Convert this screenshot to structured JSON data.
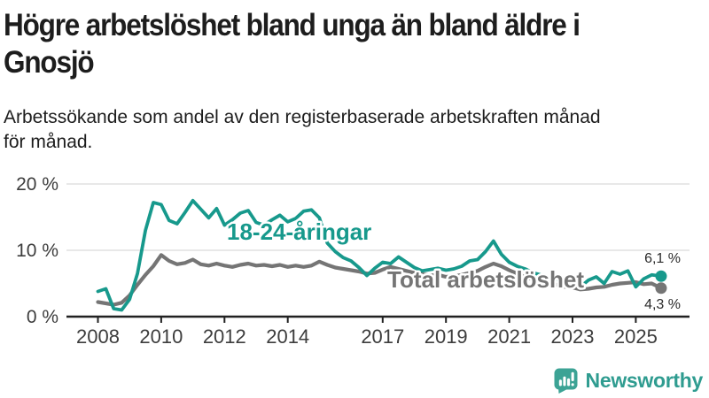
{
  "header": {
    "title_line1": "Högre arbetslöshet bland unga än bland äldre i",
    "title_line2": "Gnosjö",
    "subtitle_line1": "Arbetssökande som andel av den registerbaserade arbetskraften månad",
    "subtitle_line2": "för månad."
  },
  "footer": {
    "brand": "Newsworthy",
    "logo_icon": "newsworthy-speech-bubble-bar-chart-icon",
    "brand_color": "#2f9c90",
    "icon_color": "#3ca395"
  },
  "colors": {
    "background": "#ffffff",
    "title_text": "#1d1d1d",
    "axis_text": "#3d3d3d",
    "axis_line": "#212121",
    "gridline": "#d9d9d9",
    "youth_teal": "#17998c",
    "total_gray": "#757575"
  },
  "chart_data": {
    "type": "line",
    "title": "Högre arbetslöshet bland unga än bland äldre i Gnosjö",
    "subtitle": "Arbetssökande som andel av den registerbaserade arbetskraften månad för månad.",
    "x_unit": "decimal_year_monthly_data",
    "xlim": [
      2007.0,
      2026.8
    ],
    "ylim": [
      0,
      20
    ],
    "grid": "horizontal_only",
    "legend_position": "inline_labels_on_lines",
    "x_ticks": [
      2008,
      2010,
      2012,
      2014,
      2017,
      2019,
      2021,
      2023,
      2025
    ],
    "y_ticks": [
      {
        "value": 0,
        "label": "0 %"
      },
      {
        "value": 10,
        "label": "10 %"
      },
      {
        "value": 20,
        "label": "20 %"
      }
    ],
    "x": [
      2008,
      2008.25,
      2008.5,
      2008.75,
      2009,
      2009.25,
      2009.5,
      2009.75,
      2010,
      2010.25,
      2010.5,
      2010.75,
      2011,
      2011.25,
      2011.5,
      2011.75,
      2012,
      2012.25,
      2012.5,
      2012.75,
      2013,
      2013.25,
      2013.5,
      2013.75,
      2014,
      2014.25,
      2014.5,
      2014.75,
      2015,
      2015.25,
      2015.5,
      2015.75,
      2016,
      2016.25,
      2016.5,
      2016.75,
      2017,
      2017.25,
      2017.5,
      2017.75,
      2018,
      2018.25,
      2018.5,
      2018.75,
      2019,
      2019.25,
      2019.5,
      2019.75,
      2020,
      2020.25,
      2020.5,
      2020.75,
      2021,
      2021.25,
      2021.5,
      2021.75,
      2022,
      2022.25,
      2022.5,
      2022.75,
      2023,
      2023.25,
      2023.5,
      2023.75,
      2024,
      2024.25,
      2024.5,
      2024.75,
      2025,
      2025.25,
      2025.5,
      2025.8
    ],
    "series": [
      {
        "id": "youth",
        "name": "18-24-åringar",
        "color": "#17998c",
        "width": 3.8,
        "end_label": "6,1 %",
        "end_value": 6.1,
        "label_pos": {
          "x": 256,
          "y": 271
        },
        "end_label_pos": {
          "x": 768,
          "y": 297
        },
        "values": [
          3.8,
          4.2,
          1.2,
          1.0,
          2.6,
          6.5,
          13.0,
          17.2,
          16.9,
          14.5,
          14.0,
          15.7,
          17.5,
          16.2,
          14.9,
          16.3,
          13.8,
          14.6,
          15.6,
          16.0,
          14.2,
          13.8,
          14.6,
          15.3,
          14.3,
          14.8,
          15.9,
          16.1,
          14.9,
          11.1,
          9.8,
          8.9,
          8.4,
          7.4,
          6.2,
          7.3,
          8.2,
          8.0,
          9.0,
          8.2,
          7.4,
          6.9,
          7.1,
          7.3,
          7.0,
          7.2,
          7.6,
          8.4,
          8.6,
          9.8,
          11.4,
          9.4,
          8.2,
          7.6,
          7.2,
          6.6,
          6.3,
          5.9,
          5.7,
          4.7,
          5.7,
          4.5,
          5.5,
          6.0,
          5.0,
          6.8,
          6.4,
          6.9,
          4.5,
          5.7,
          6.3,
          6.1
        ]
      },
      {
        "id": "total",
        "name": "Total arbetslöshet",
        "color": "#757575",
        "width": 4.2,
        "end_label": "4,3 %",
        "end_value": 4.3,
        "label_pos": {
          "x": 437,
          "y": 325
        },
        "end_label_pos": {
          "x": 768,
          "y": 349
        },
        "values": [
          2.2,
          2.0,
          1.8,
          2.1,
          3.2,
          4.8,
          6.3,
          7.6,
          9.3,
          8.4,
          7.9,
          8.1,
          8.6,
          7.9,
          7.7,
          8.0,
          7.7,
          7.5,
          7.8,
          8.0,
          7.7,
          7.8,
          7.6,
          7.8,
          7.5,
          7.7,
          7.5,
          7.7,
          8.3,
          7.8,
          7.4,
          7.2,
          7.0,
          6.8,
          6.5,
          6.6,
          7.1,
          7.5,
          7.2,
          6.9,
          6.6,
          6.4,
          6.2,
          6.3,
          6.0,
          6.1,
          6.3,
          6.6,
          6.9,
          7.5,
          8.0,
          7.6,
          7.0,
          6.5,
          6.0,
          5.6,
          5.3,
          5.0,
          4.8,
          4.5,
          4.4,
          4.1,
          4.2,
          4.4,
          4.5,
          4.8,
          5.0,
          5.1,
          5.2,
          4.9,
          5.0,
          4.3
        ]
      }
    ]
  }
}
